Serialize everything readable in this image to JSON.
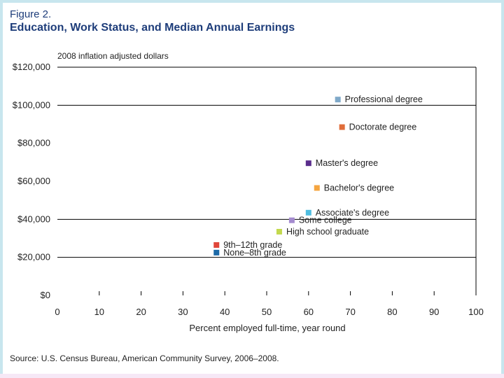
{
  "figure": {
    "label": "Figure 2.",
    "title": "Education, Work Status, and Median Annual Earnings",
    "source": "Source: U.S. Census Bureau, American Community Survey, 2006–2008."
  },
  "colors": {
    "title": "#1e3d7a",
    "gridline": "#000000"
  },
  "chart_data": {
    "type": "scatter",
    "title": "Education, Work Status, and Median Annual Earnings",
    "ylabel": "2008 inflation adjusted dollars",
    "xlabel": "Percent employed full-time, year round",
    "xlim": [
      0,
      100
    ],
    "ylim": [
      0,
      120000
    ],
    "x_ticks": [
      "0",
      "10",
      "20",
      "30",
      "40",
      "50",
      "60",
      "70",
      "80",
      "90",
      "100"
    ],
    "x_tick_values": [
      0,
      10,
      20,
      30,
      40,
      50,
      60,
      70,
      80,
      90,
      100
    ],
    "y_ticks": [
      "$0",
      "$20,000",
      "$40,000",
      "$60,000",
      "$80,000",
      "$100,000",
      "$120,000"
    ],
    "y_tick_values": [
      0,
      20000,
      40000,
      60000,
      80000,
      100000,
      120000
    ],
    "gridlines_y": [
      20000,
      40000,
      100000,
      120000
    ],
    "points": [
      {
        "name": "Professional degree",
        "x": 67,
        "y": 103000,
        "color": "#7fa9c9"
      },
      {
        "name": "Doctorate degree",
        "x": 68,
        "y": 88500,
        "color": "#e06d3a"
      },
      {
        "name": "Master's degree",
        "x": 60,
        "y": 69500,
        "color": "#5a2d8c"
      },
      {
        "name": "Bachelor's degree",
        "x": 62,
        "y": 56500,
        "color": "#f5a540"
      },
      {
        "name": "Associate's degree",
        "x": 60,
        "y": 43500,
        "color": "#4fbde0"
      },
      {
        "name": "Some college",
        "x": 56,
        "y": 39500,
        "color": "#a48bcf"
      },
      {
        "name": "High school graduate",
        "x": 53,
        "y": 33500,
        "color": "#c3d94e"
      },
      {
        "name": "9th–12th grade",
        "x": 38,
        "y": 26500,
        "color": "#e0463a"
      },
      {
        "name": "None–8th grade",
        "x": 38,
        "y": 22500,
        "color": "#1d6aa8"
      }
    ]
  }
}
